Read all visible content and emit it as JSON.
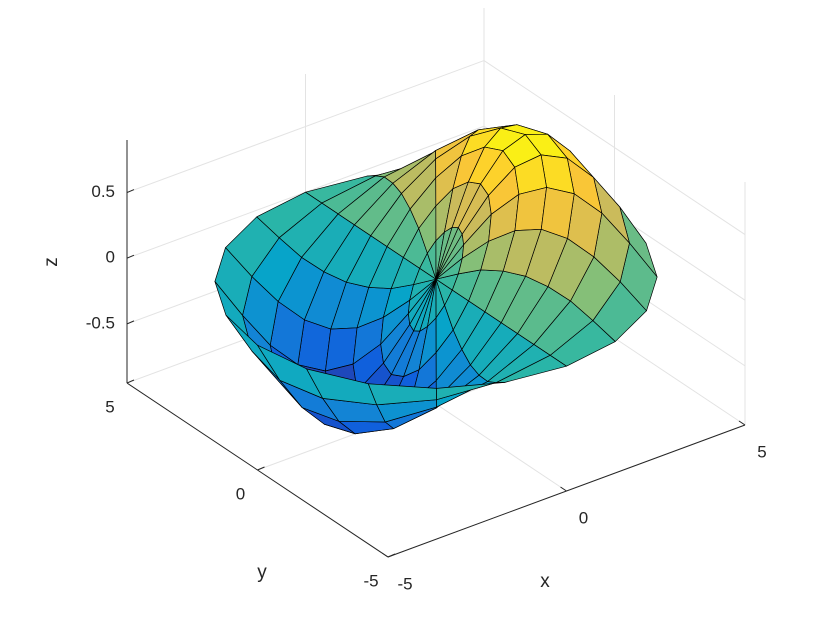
{
  "chart_data": {
    "type": "surface",
    "xlabel": "x",
    "ylabel": "y",
    "zlabel": "z",
    "xlim": [
      -5,
      5
    ],
    "ylim": [
      -5,
      5
    ],
    "zlim": [
      -0.95,
      0.9
    ],
    "xticks": [
      -5,
      0,
      5
    ],
    "yticks": [
      -5,
      0,
      5
    ],
    "zticks": [
      -0.5,
      0,
      0.5
    ],
    "grid": true,
    "view": [
      -37.5,
      30
    ],
    "colormap": [
      "#352a87",
      "#0f5cdd",
      "#1481d6",
      "#06a4ca",
      "#2eb7a4",
      "#87bf77",
      "#d1bb59",
      "#fec832",
      "#f9fb0e"
    ],
    "r": [
      0,
      0.625,
      1.25,
      1.875,
      2.5,
      3.125,
      3.75,
      4.375,
      5
    ],
    "theta": [
      0,
      18,
      36,
      54,
      72,
      90,
      108,
      126,
      144,
      162,
      180,
      198,
      216,
      234,
      252,
      270,
      288,
      306,
      324,
      342
    ],
    "z": [
      [
        0,
        0,
        0,
        0,
        0,
        0,
        0,
        0,
        0,
        0,
        0,
        0,
        0,
        0,
        0,
        0,
        0,
        0,
        0,
        0
      ],
      [
        0.33,
        0.31,
        0.26,
        0.19,
        0.1,
        0,
        -0.1,
        -0.19,
        -0.26,
        -0.31,
        -0.33,
        -0.31,
        -0.26,
        -0.19,
        -0.1,
        0,
        0.1,
        0.19,
        0.26,
        0.31
      ],
      [
        0.6,
        0.57,
        0.49,
        0.35,
        0.19,
        0,
        -0.19,
        -0.35,
        -0.49,
        -0.57,
        -0.6,
        -0.57,
        -0.49,
        -0.35,
        -0.19,
        0,
        0.19,
        0.35,
        0.49,
        0.57
      ],
      [
        0.79,
        0.75,
        0.64,
        0.46,
        0.24,
        0,
        -0.24,
        -0.46,
        -0.64,
        -0.75,
        -0.79,
        -0.75,
        -0.64,
        -0.46,
        -0.24,
        0,
        0.24,
        0.46,
        0.64,
        0.75
      ],
      [
        0.85,
        0.81,
        0.69,
        0.5,
        0.26,
        0,
        -0.26,
        -0.5,
        -0.69,
        -0.81,
        -0.85,
        -0.81,
        -0.69,
        -0.5,
        -0.26,
        0,
        0.26,
        0.5,
        0.69,
        0.81
      ],
      [
        0.79,
        0.75,
        0.64,
        0.46,
        0.24,
        0,
        -0.24,
        -0.46,
        -0.64,
        -0.75,
        -0.79,
        -0.75,
        -0.64,
        -0.46,
        -0.24,
        0,
        0.24,
        0.46,
        0.64,
        0.75
      ],
      [
        0.6,
        0.57,
        0.49,
        0.35,
        0.19,
        0,
        -0.19,
        -0.35,
        -0.49,
        -0.57,
        -0.6,
        -0.57,
        -0.49,
        -0.35,
        -0.19,
        0,
        0.19,
        0.35,
        0.49,
        0.57
      ],
      [
        0.33,
        0.31,
        0.26,
        0.19,
        0.1,
        0,
        -0.1,
        -0.19,
        -0.26,
        -0.31,
        -0.33,
        -0.31,
        -0.26,
        -0.19,
        -0.1,
        0,
        0.1,
        0.19,
        0.26,
        0.31
      ],
      [
        0,
        0,
        0,
        0,
        0,
        0,
        0,
        0,
        0,
        0,
        0,
        0,
        0,
        0,
        0,
        0,
        0,
        0,
        0,
        0
      ]
    ]
  }
}
